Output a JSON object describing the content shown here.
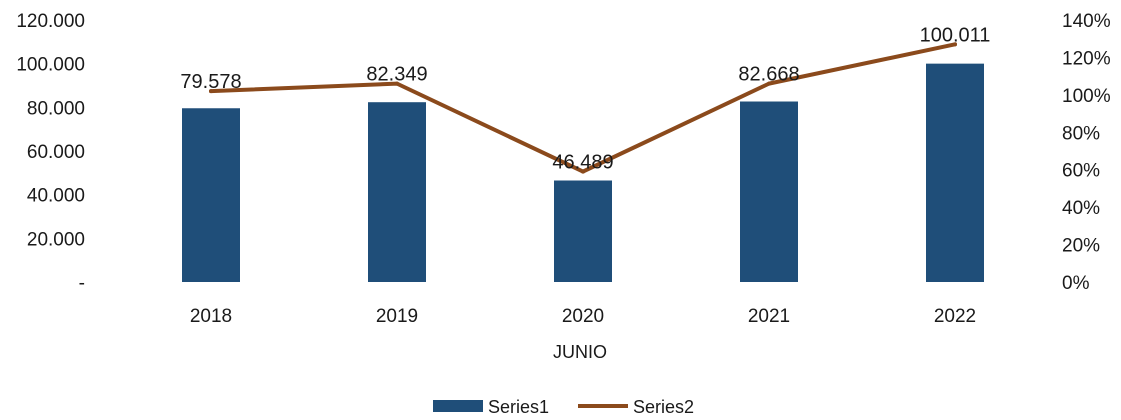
{
  "chart_data": {
    "type": "bar",
    "xlabel": "JUNIO",
    "categories": [
      "2018",
      "2019",
      "2020",
      "2021",
      "2022"
    ],
    "series": [
      {
        "name": "Series1",
        "type": "bar",
        "axis": "left",
        "values": [
          79578,
          82349,
          46489,
          82668,
          100011
        ],
        "labels": [
          "79.578",
          "82.349",
          "46.489",
          "82.668",
          "100.011"
        ],
        "color": "#1f4e79"
      },
      {
        "name": "Series2",
        "type": "line",
        "axis": "right",
        "values": [
          102,
          106,
          59,
          106,
          127
        ],
        "color": "#8b4a1c"
      }
    ],
    "y_left": {
      "range": [
        0,
        120000
      ],
      "ticks": [
        0,
        20000,
        40000,
        60000,
        80000,
        100000,
        120000
      ],
      "tick_labels": [
        "-",
        "20.000",
        "40.000",
        "60.000",
        "80.000",
        "100.000",
        "120.000"
      ]
    },
    "y_right": {
      "range": [
        0,
        140
      ],
      "ticks": [
        0,
        20,
        40,
        60,
        80,
        100,
        120,
        140
      ],
      "tick_labels": [
        "0%",
        "20%",
        "40%",
        "60%",
        "80%",
        "100%",
        "120%",
        "140%"
      ]
    },
    "grid": false,
    "legend": "bottom-center"
  }
}
